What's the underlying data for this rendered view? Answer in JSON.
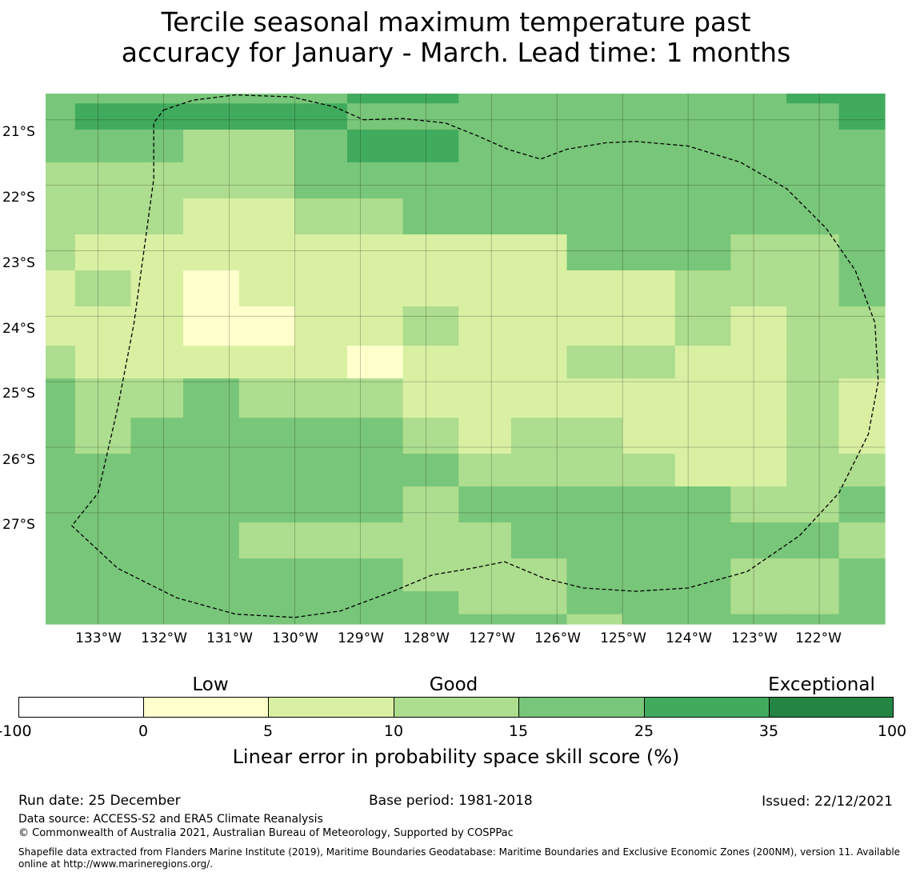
{
  "title": {
    "line1": "Tercile seasonal maximum temperature past",
    "line2": "accuracy for January - March. Lead time: 1 months"
  },
  "map": {
    "lat_labels": [
      "21°S",
      "22°S",
      "23°S",
      "24°S",
      "25°S",
      "26°S",
      "27°S"
    ],
    "lon_labels": [
      "133°W",
      "132°W",
      "131°W",
      "130°W",
      "129°W",
      "128°W",
      "127°W",
      "126°W",
      "125°W",
      "124°W",
      "123°W",
      "122°W"
    ],
    "lon_range_deg": [
      -133.8,
      -121.0
    ],
    "lat_range_deg": [
      -20.6,
      -28.7
    ],
    "class_colors": [
      "#ffffcc",
      "#d9f0a3",
      "#addd8e",
      "#78c679",
      "#41ab5d"
    ],
    "grid_columns_lon_edges": [
      -133.8,
      -133.35,
      -132.5,
      -131.7,
      -130.85,
      -130.0,
      -129.2,
      -128.35,
      -127.5,
      -126.7,
      -125.85,
      -125.0,
      -124.2,
      -123.35,
      -122.5,
      -121.7,
      -121.0
    ],
    "grid_rows_lat_edges": [
      -20.6,
      -20.75,
      -21.15,
      -21.65,
      -22.2,
      -22.75,
      -23.3,
      -23.85,
      -24.45,
      -24.95,
      -25.55,
      -26.1,
      -26.6,
      -27.15,
      -27.7,
      -28.2,
      -28.55,
      -28.7
    ],
    "grid_class_rows": [
      [
        3,
        3,
        3,
        3,
        3,
        3,
        4,
        4,
        3,
        3,
        3,
        3,
        3,
        3,
        4,
        4
      ],
      [
        3,
        4,
        4,
        4,
        4,
        4,
        3,
        3,
        3,
        3,
        3,
        3,
        3,
        3,
        3,
        4
      ],
      [
        3,
        3,
        3,
        2,
        2,
        3,
        4,
        4,
        3,
        3,
        3,
        3,
        3,
        3,
        3,
        3
      ],
      [
        2,
        2,
        2,
        2,
        2,
        3,
        3,
        3,
        3,
        3,
        3,
        3,
        3,
        3,
        3,
        3
      ],
      [
        2,
        2,
        2,
        1,
        1,
        2,
        2,
        3,
        3,
        3,
        3,
        3,
        3,
        3,
        3,
        3
      ],
      [
        2,
        1,
        1,
        1,
        1,
        1,
        1,
        1,
        1,
        1,
        3,
        3,
        3,
        2,
        2,
        3
      ],
      [
        1,
        2,
        1,
        0,
        1,
        1,
        1,
        1,
        1,
        1,
        1,
        1,
        2,
        2,
        2,
        3
      ],
      [
        1,
        1,
        1,
        0,
        0,
        1,
        1,
        2,
        1,
        1,
        1,
        1,
        2,
        1,
        2,
        2
      ],
      [
        2,
        1,
        1,
        1,
        1,
        1,
        0,
        1,
        1,
        1,
        2,
        2,
        1,
        1,
        2,
        2
      ],
      [
        3,
        2,
        2,
        3,
        2,
        2,
        2,
        1,
        1,
        1,
        1,
        1,
        1,
        1,
        2,
        1
      ],
      [
        3,
        2,
        3,
        3,
        3,
        3,
        3,
        2,
        1,
        2,
        2,
        1,
        1,
        1,
        2,
        1
      ],
      [
        3,
        3,
        3,
        3,
        3,
        3,
        3,
        3,
        2,
        2,
        2,
        2,
        1,
        1,
        2,
        2
      ],
      [
        3,
        3,
        3,
        3,
        3,
        3,
        3,
        2,
        3,
        3,
        3,
        3,
        3,
        2,
        2,
        3
      ],
      [
        3,
        3,
        3,
        3,
        2,
        2,
        2,
        2,
        2,
        3,
        3,
        3,
        3,
        3,
        3,
        2
      ],
      [
        3,
        3,
        3,
        3,
        3,
        3,
        3,
        2,
        2,
        2,
        3,
        3,
        3,
        2,
        2,
        3
      ],
      [
        3,
        3,
        3,
        3,
        3,
        3,
        3,
        3,
        2,
        2,
        3,
        3,
        3,
        2,
        2,
        3
      ],
      [
        3,
        3,
        3,
        3,
        3,
        3,
        3,
        3,
        3,
        3,
        2,
        3,
        3,
        3,
        3,
        3
      ]
    ],
    "eez_boundary_lonlat": [
      [
        -132.0,
        -20.85
      ],
      [
        -131.55,
        -20.7
      ],
      [
        -130.9,
        -20.62
      ],
      [
        -130.05,
        -20.65
      ],
      [
        -129.4,
        -20.8
      ],
      [
        -128.95,
        -21.0
      ],
      [
        -128.35,
        -20.98
      ],
      [
        -127.7,
        -21.05
      ],
      [
        -127.2,
        -21.25
      ],
      [
        -126.75,
        -21.45
      ],
      [
        -126.25,
        -21.6
      ],
      [
        -125.85,
        -21.45
      ],
      [
        -125.25,
        -21.35
      ],
      [
        -124.8,
        -21.33
      ],
      [
        -124.0,
        -21.4
      ],
      [
        -123.2,
        -21.65
      ],
      [
        -122.5,
        -22.05
      ],
      [
        -121.9,
        -22.65
      ],
      [
        -121.45,
        -23.3
      ],
      [
        -121.15,
        -24.1
      ],
      [
        -121.1,
        -25.0
      ],
      [
        -121.25,
        -25.8
      ],
      [
        -121.7,
        -26.7
      ],
      [
        -122.3,
        -27.35
      ],
      [
        -123.1,
        -27.9
      ],
      [
        -124.0,
        -28.15
      ],
      [
        -124.8,
        -28.2
      ],
      [
        -125.6,
        -28.15
      ],
      [
        -126.2,
        -28.0
      ],
      [
        -126.8,
        -27.75
      ],
      [
        -127.3,
        -27.85
      ],
      [
        -127.9,
        -27.95
      ],
      [
        -128.5,
        -28.2
      ],
      [
        -129.3,
        -28.5
      ],
      [
        -130.0,
        -28.6
      ],
      [
        -130.9,
        -28.55
      ],
      [
        -131.8,
        -28.3
      ],
      [
        -132.7,
        -27.85
      ],
      [
        -133.4,
        -27.2
      ],
      [
        -133.0,
        -26.7
      ],
      [
        -132.7,
        -25.4
      ],
      [
        -132.45,
        -24.1
      ],
      [
        -132.3,
        -23.0
      ],
      [
        -132.15,
        -21.9
      ],
      [
        -132.15,
        -21.05
      ],
      [
        -132.0,
        -20.85
      ]
    ]
  },
  "colorbar": {
    "category_labels": [
      "Low",
      "Good",
      "Exceptional"
    ],
    "tick_labels": [
      "-100",
      "0",
      "5",
      "10",
      "15",
      "25",
      "35",
      "100"
    ],
    "colors": [
      "#ffffff",
      "#ffffcc",
      "#d9f0a3",
      "#addd8e",
      "#78c679",
      "#41ab5d",
      "#238443"
    ],
    "title": "Linear error in probability space skill score (%)"
  },
  "footer": {
    "run_date": "Run date: 25 December",
    "base_period": "Base period: 1981-2018",
    "issued": "Issued: 22/12/2021",
    "data_source": "Data source: ACCESS-S2 and ERA5 Climate Reanalysis",
    "copyright": "© Commonwealth of Australia 2021, Australian Bureau of Meteorology, Supported by COSPPac",
    "shapefile": "Shapefile data extracted from Flanders Marine Institute (2019), Maritime Boundaries Geodatabase: Maritime Boundaries and Exclusive Economic Zones (200NM), version 11. Available online at http://www.marineregions.org/."
  }
}
